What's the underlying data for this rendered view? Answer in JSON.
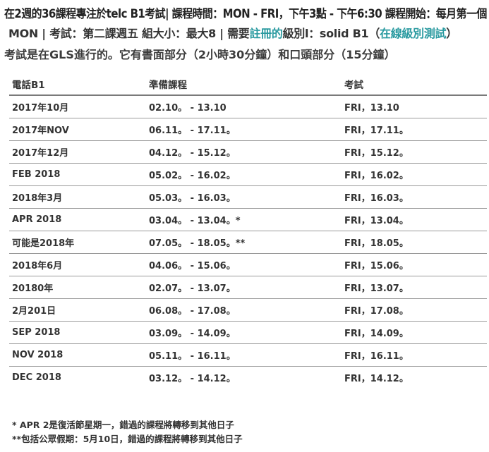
{
  "header": {
    "line1": "在2週的36課程專注於telc B1考試| 課程時間：MON - FRI，下午3點 - 下午6:30 課程開始：每月第一個",
    "line2_pre": "MON | 考試：第二課週五 組大小：最大8 | 需要",
    "line2_link": "註冊的",
    "line2_mid": "級別l：solid B1（",
    "line2_link2": "在線級別測試",
    "line2_post": "）",
    "line3": "考試是在GLS進行的。它有書面部分（2小時30分鐘）和口頭部分（15分鐘）"
  },
  "table": {
    "headers": [
      "電話B1",
      "準備課程",
      "考試"
    ],
    "rows": [
      [
        "2017年10月",
        "02.10。 - 13.10",
        "FRI，13.10"
      ],
      [
        "2017年NOV",
        "06.11。 - 17.11。",
        "FRI，17.11。"
      ],
      [
        "2017年12月",
        "04.12。 - 15.12。",
        "FRI，15.12。"
      ],
      [
        "FEB 2018",
        "05.02。 - 16.02。",
        "FRI，16.02。"
      ],
      [
        "2018年3月",
        "05.03。 - 16.03。",
        "FRI，16.03。"
      ],
      [
        "APR 2018",
        "03.04。 - 13.04。*",
        "FRI，13.04。"
      ],
      [
        "可能是2018年",
        "07.05。 - 18.05。**",
        "FRI，18.05。"
      ],
      [
        "2018年6月",
        "04.06。 - 15.06。",
        "FRI，15.06。"
      ],
      [
        "20180年",
        "02.07。 - 13.07。",
        "FRI，13.07。"
      ],
      [
        "2月201日",
        "06.08。 - 17.08。",
        "FRI，17.08。"
      ],
      [
        "SEP 2018",
        "03.09。 - 14.09。",
        "FRI，14.09。"
      ],
      [
        "NOV 2018",
        "05.11。 - 16.11。",
        "FRI，16.11。"
      ],
      [
        "DEC 2018",
        "03.12。 - 14.12。",
        "FRI，14.12。"
      ]
    ]
  },
  "notes": [
    "* APR 2是復活節星期一，錯過的課程將轉移到其他日子",
    "**包括公眾假期：5月10日，錯過的課程將轉移到其他日子"
  ],
  "colors": {
    "link": "#2a9aa0",
    "text": "#333333",
    "rule": "#9a9a9a"
  }
}
